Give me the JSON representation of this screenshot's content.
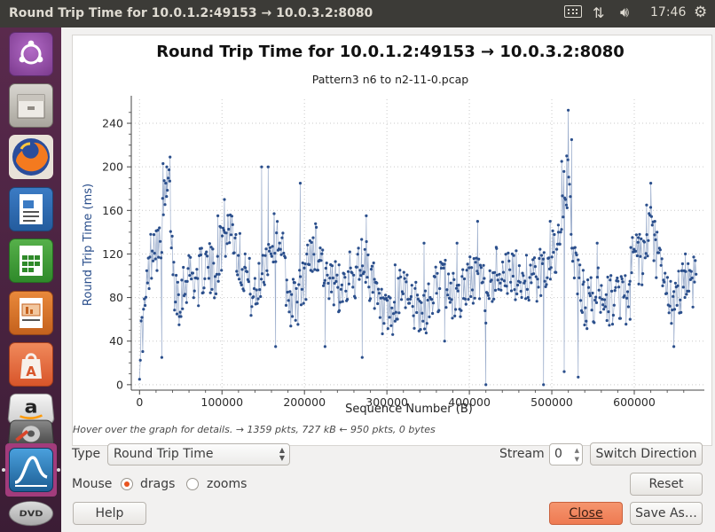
{
  "window": {
    "title": "Round Trip Time for 10.0.1.2:49153 → 10.0.3.2:8080",
    "clock": "17:46"
  },
  "launcher": {
    "items": [
      "ubuntu-dash-icon",
      "files-icon",
      "firefox-icon",
      "writer-icon",
      "calc-icon",
      "impress-icon",
      "software-center-icon",
      "amazon-icon",
      "system-settings-icon",
      "wireshark-icon",
      "dvd-icon"
    ]
  },
  "chart_data": {
    "type": "scatter",
    "title": "Round Trip Time for 10.0.1.2:49153 → 10.0.3.2:8080",
    "subtitle": "Pattern3 n6 to n2-11-0.pcap",
    "xlabel": "Sequence Number (B)",
    "ylabel": "Round Trip Time (ms)",
    "xlim": [
      -10000,
      685000
    ],
    "ylim": [
      -5,
      262
    ],
    "xticks": [
      0,
      100000,
      200000,
      300000,
      400000,
      500000,
      600000
    ],
    "yticks": [
      0,
      40,
      80,
      120,
      160,
      200,
      240
    ],
    "connected": true,
    "series_color": "#2b4f8c",
    "anchors": [
      [
        0,
        30
      ],
      [
        6000,
        65
      ],
      [
        12000,
        110
      ],
      [
        18000,
        140
      ],
      [
        24000,
        120
      ],
      [
        30000,
        165
      ],
      [
        36000,
        180
      ],
      [
        42000,
        90
      ],
      [
        50000,
        85
      ],
      [
        60000,
        105
      ],
      [
        70000,
        95
      ],
      [
        80000,
        110
      ],
      [
        90000,
        100
      ],
      [
        100000,
        130
      ],
      [
        110000,
        150
      ],
      [
        120000,
        120
      ],
      [
        130000,
        100
      ],
      [
        140000,
        75
      ],
      [
        150000,
        110
      ],
      [
        160000,
        130
      ],
      [
        170000,
        140
      ],
      [
        180000,
        80
      ],
      [
        190000,
        75
      ],
      [
        200000,
        95
      ],
      [
        210000,
        130
      ],
      [
        220000,
        120
      ],
      [
        230000,
        85
      ],
      [
        240000,
        90
      ],
      [
        250000,
        100
      ],
      [
        260000,
        95
      ],
      [
        270000,
        120
      ],
      [
        280000,
        100
      ],
      [
        290000,
        70
      ],
      [
        300000,
        55
      ],
      [
        310000,
        60
      ],
      [
        320000,
        95
      ],
      [
        330000,
        80
      ],
      [
        340000,
        60
      ],
      [
        350000,
        70
      ],
      [
        360000,
        90
      ],
      [
        370000,
        95
      ],
      [
        380000,
        80
      ],
      [
        390000,
        85
      ],
      [
        400000,
        95
      ],
      [
        410000,
        100
      ],
      [
        420000,
        80
      ],
      [
        430000,
        100
      ],
      [
        440000,
        110
      ],
      [
        450000,
        95
      ],
      [
        460000,
        100
      ],
      [
        470000,
        100
      ],
      [
        480000,
        95
      ],
      [
        490000,
        105
      ],
      [
        500000,
        120
      ],
      [
        510000,
        125
      ],
      [
        515000,
        175
      ],
      [
        520000,
        185
      ],
      [
        525000,
        130
      ],
      [
        530000,
        100
      ],
      [
        540000,
        75
      ],
      [
        550000,
        75
      ],
      [
        560000,
        90
      ],
      [
        570000,
        75
      ],
      [
        580000,
        85
      ],
      [
        590000,
        80
      ],
      [
        600000,
        120
      ],
      [
        610000,
        110
      ],
      [
        620000,
        140
      ],
      [
        630000,
        110
      ],
      [
        640000,
        80
      ],
      [
        650000,
        70
      ],
      [
        660000,
        100
      ],
      [
        670000,
        90
      ],
      [
        675000,
        110
      ]
    ],
    "spikes": [
      [
        27000,
        25
      ],
      [
        28500,
        203
      ],
      [
        33000,
        200
      ],
      [
        37000,
        209
      ],
      [
        48000,
        55
      ],
      [
        95000,
        155
      ],
      [
        103000,
        170
      ],
      [
        128000,
        120
      ],
      [
        148000,
        200
      ],
      [
        156000,
        200
      ],
      [
        165000,
        35
      ],
      [
        195000,
        185
      ],
      [
        225000,
        35
      ],
      [
        242000,
        110
      ],
      [
        270000,
        25
      ],
      [
        275000,
        155
      ],
      [
        285000,
        70
      ],
      [
        310000,
        110
      ],
      [
        345000,
        130
      ],
      [
        370000,
        40
      ],
      [
        385000,
        130
      ],
      [
        410000,
        150
      ],
      [
        420000,
        0
      ],
      [
        433000,
        125
      ],
      [
        490000,
        0
      ],
      [
        498000,
        150
      ],
      [
        508000,
        140
      ],
      [
        512000,
        205
      ],
      [
        515000,
        12
      ],
      [
        518000,
        210
      ],
      [
        520000,
        252
      ],
      [
        524000,
        225
      ],
      [
        532000,
        7
      ],
      [
        538000,
        105
      ],
      [
        555000,
        130
      ],
      [
        595000,
        60
      ],
      [
        605000,
        135
      ],
      [
        615000,
        165
      ],
      [
        620000,
        185
      ],
      [
        625000,
        150
      ],
      [
        648000,
        35
      ],
      [
        662000,
        120
      ]
    ],
    "point_count": 700,
    "seed": 17
  },
  "status": {
    "hint": "Hover over the graph for details. → 1359 pkts, 727 kB ← 950 pkts, 0 bytes"
  },
  "controls": {
    "type_label": "Type",
    "type_value": "Round Trip Time",
    "stream_label": "Stream",
    "stream_value": "0",
    "switch_direction": "Switch Direction",
    "mouse_label": "Mouse",
    "drags_label": "drags",
    "zooms_label": "zooms",
    "reset": "Reset",
    "help": "Help",
    "close": "Close",
    "save_as": "Save As…"
  }
}
